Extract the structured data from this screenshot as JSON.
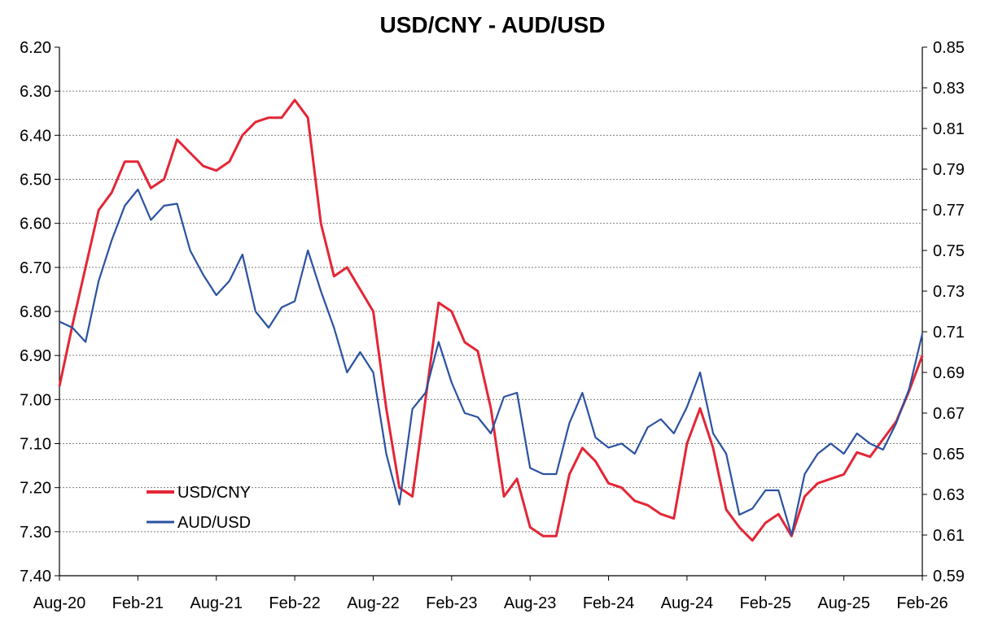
{
  "chart_data": {
    "type": "line",
    "title": "USD/CNY - AUD/USD",
    "xlabel": "",
    "x_tick_labels": [
      "Aug-20",
      "Feb-21",
      "Aug-21",
      "Feb-22",
      "Aug-22",
      "Feb-23",
      "Aug-23",
      "Feb-24",
      "Aug-24",
      "Feb-25",
      "Aug-25",
      "Feb-26"
    ],
    "x_range": [
      "Aug-20",
      "Feb-26"
    ],
    "y_left": {
      "label": "",
      "min": 6.2,
      "max": 7.4,
      "reversed": true,
      "tick_labels": [
        "6.20",
        "6.30",
        "6.40",
        "6.50",
        "6.60",
        "6.70",
        "6.80",
        "6.90",
        "7.00",
        "7.10",
        "7.20",
        "7.30",
        "7.40"
      ]
    },
    "y_right": {
      "label": "",
      "min": 0.59,
      "max": 0.85,
      "tick_labels": [
        "0.85",
        "0.83",
        "0.81",
        "0.79",
        "0.77",
        "0.75",
        "0.73",
        "0.71",
        "0.69",
        "0.67",
        "0.65",
        "0.63",
        "0.61",
        "0.59"
      ]
    },
    "grid": "horizontal dashed",
    "legend_position": "bottom-left",
    "series": [
      {
        "name": "USD/CNY",
        "axis": "left",
        "color": "#e32636",
        "x": [
          "2020-08",
          "2020-09",
          "2020-10",
          "2020-11",
          "2020-12",
          "2021-01",
          "2021-02",
          "2021-03",
          "2021-04",
          "2021-05",
          "2021-06",
          "2021-07",
          "2021-08",
          "2021-09",
          "2021-10",
          "2021-11",
          "2021-12",
          "2022-01",
          "2022-02",
          "2022-03",
          "2022-04",
          "2022-05",
          "2022-06",
          "2022-07",
          "2022-08",
          "2022-09",
          "2022-10",
          "2022-11",
          "2022-12",
          "2023-01",
          "2023-02",
          "2023-03",
          "2023-04",
          "2023-05",
          "2023-06",
          "2023-07",
          "2023-08",
          "2023-09",
          "2023-10",
          "2023-11",
          "2023-12",
          "2024-01",
          "2024-02",
          "2024-03",
          "2024-04",
          "2024-05",
          "2024-06",
          "2024-07",
          "2024-08",
          "2024-09",
          "2024-10",
          "2024-11",
          "2024-12",
          "2025-01",
          "2025-02",
          "2025-03",
          "2025-04",
          "2025-05",
          "2025-06",
          "2025-07",
          "2025-08",
          "2025-09",
          "2025-10",
          "2025-11",
          "2025-12",
          "2026-01",
          "2026-02"
        ],
        "values": [
          6.97,
          6.83,
          6.7,
          6.57,
          6.53,
          6.46,
          6.46,
          6.52,
          6.5,
          6.41,
          6.44,
          6.47,
          6.48,
          6.46,
          6.4,
          6.37,
          6.36,
          6.36,
          6.32,
          6.36,
          6.6,
          6.72,
          6.7,
          6.75,
          6.8,
          7.02,
          7.2,
          7.22,
          7.0,
          6.78,
          6.8,
          6.87,
          6.89,
          7.02,
          7.22,
          7.18,
          7.29,
          7.31,
          7.31,
          7.17,
          7.11,
          7.14,
          7.19,
          7.2,
          7.23,
          7.24,
          7.26,
          7.27,
          7.1,
          7.02,
          7.11,
          7.25,
          7.29,
          7.32,
          7.28,
          7.26,
          7.31,
          7.22,
          7.19,
          7.18,
          7.17,
          7.12,
          7.13,
          7.09,
          7.05,
          6.98,
          6.9
        ]
      },
      {
        "name": "AUD/USD",
        "axis": "right",
        "color": "#2a52a0",
        "x": [
          "2020-08",
          "2020-09",
          "2020-10",
          "2020-11",
          "2020-12",
          "2021-01",
          "2021-02",
          "2021-03",
          "2021-04",
          "2021-05",
          "2021-06",
          "2021-07",
          "2021-08",
          "2021-09",
          "2021-10",
          "2021-11",
          "2021-12",
          "2022-01",
          "2022-02",
          "2022-03",
          "2022-04",
          "2022-05",
          "2022-06",
          "2022-07",
          "2022-08",
          "2022-09",
          "2022-10",
          "2022-11",
          "2022-12",
          "2023-01",
          "2023-02",
          "2023-03",
          "2023-04",
          "2023-05",
          "2023-06",
          "2023-07",
          "2023-08",
          "2023-09",
          "2023-10",
          "2023-11",
          "2023-12",
          "2024-01",
          "2024-02",
          "2024-03",
          "2024-04",
          "2024-05",
          "2024-06",
          "2024-07",
          "2024-08",
          "2024-09",
          "2024-10",
          "2024-11",
          "2024-12",
          "2025-01",
          "2025-02",
          "2025-03",
          "2025-04",
          "2025-05",
          "2025-06",
          "2025-07",
          "2025-08",
          "2025-09",
          "2025-10",
          "2025-11",
          "2025-12",
          "2026-01",
          "2026-02"
        ],
        "values": [
          0.715,
          0.712,
          0.705,
          0.735,
          0.755,
          0.772,
          0.78,
          0.765,
          0.772,
          0.773,
          0.75,
          0.738,
          0.728,
          0.735,
          0.748,
          0.72,
          0.712,
          0.722,
          0.725,
          0.75,
          0.73,
          0.712,
          0.69,
          0.7,
          0.69,
          0.65,
          0.625,
          0.672,
          0.68,
          0.705,
          0.685,
          0.67,
          0.668,
          0.66,
          0.678,
          0.68,
          0.643,
          0.64,
          0.64,
          0.665,
          0.68,
          0.658,
          0.653,
          0.655,
          0.65,
          0.663,
          0.667,
          0.66,
          0.673,
          0.69,
          0.66,
          0.65,
          0.62,
          0.623,
          0.632,
          0.632,
          0.61,
          0.64,
          0.65,
          0.655,
          0.65,
          0.66,
          0.655,
          0.652,
          0.665,
          0.682,
          0.709
        ]
      }
    ]
  }
}
